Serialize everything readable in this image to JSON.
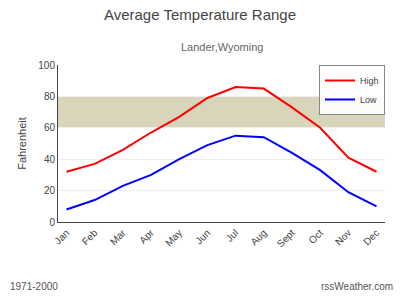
{
  "chart_data": {
    "type": "line",
    "title": "Average Temperature Range",
    "subtitle": "Lander,Wyoming",
    "ylabel": "Fahrenheit",
    "annotations": [
      "1971-2000",
      "rssWeather.com"
    ],
    "categories": [
      "Jan",
      "Feb",
      "Mar",
      "Apr",
      "May",
      "Jun",
      "Jul",
      "Aug",
      "Sept",
      "Oct",
      "Nov",
      "Dec"
    ],
    "series": [
      {
        "name": "High",
        "color": "#ff0000",
        "values": [
          32,
          37,
          46,
          57,
          67,
          79,
          86,
          85,
          73,
          60,
          41,
          32
        ]
      },
      {
        "name": "Low",
        "color": "#0000ff",
        "values": [
          8,
          14,
          23,
          30,
          40,
          49,
          55,
          54,
          44,
          33,
          19,
          10
        ]
      }
    ],
    "band": {
      "from": 60,
      "to": 80,
      "color": "#d8d5bb"
    },
    "ylim": [
      0,
      100
    ],
    "yticks": [
      0,
      20,
      40,
      60,
      80,
      100
    ],
    "grid": true,
    "legend": "upper right"
  }
}
